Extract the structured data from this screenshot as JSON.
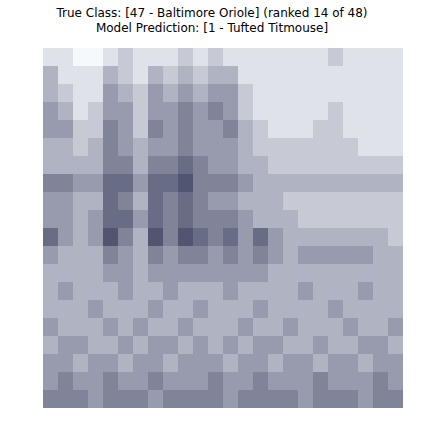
{
  "chart_data": {
    "type": "heatmap",
    "title": "True Class: [47 - Baltimore Oriole] (ranked 14 of 48)",
    "subtitle": "Model Prediction: [1 - Tufted Titmouse]",
    "tick_labels": false,
    "zlim": [
      0,
      9
    ],
    "cells": [
      [
        1,
        1,
        0,
        0,
        1,
        2,
        1,
        1,
        1,
        2,
        1,
        2,
        1,
        1,
        1,
        1,
        1,
        1,
        1,
        2,
        1,
        1,
        1,
        1
      ],
      [
        3,
        1,
        1,
        1,
        3,
        2,
        1,
        3,
        2,
        3,
        2,
        3,
        3,
        1,
        1,
        1,
        1,
        1,
        1,
        1,
        1,
        1,
        1,
        1
      ],
      [
        3,
        2,
        1,
        1,
        4,
        3,
        2,
        4,
        3,
        4,
        3,
        4,
        4,
        2,
        1,
        1,
        1,
        1,
        1,
        1,
        1,
        1,
        1,
        1
      ],
      [
        4,
        3,
        1,
        2,
        4,
        4,
        2,
        4,
        4,
        5,
        4,
        5,
        4,
        2,
        1,
        1,
        1,
        1,
        1,
        2,
        1,
        1,
        1,
        1
      ],
      [
        4,
        4,
        2,
        2,
        5,
        4,
        2,
        5,
        4,
        5,
        4,
        4,
        5,
        3,
        2,
        1,
        1,
        1,
        2,
        2,
        1,
        1,
        1,
        1
      ],
      [
        3,
        3,
        2,
        3,
        5,
        4,
        3,
        4,
        4,
        5,
        4,
        4,
        4,
        3,
        2,
        2,
        2,
        2,
        2,
        2,
        2,
        1,
        1,
        1
      ],
      [
        3,
        3,
        3,
        3,
        5,
        5,
        3,
        5,
        5,
        6,
        5,
        4,
        4,
        3,
        3,
        2,
        2,
        2,
        2,
        2,
        2,
        2,
        2,
        2
      ],
      [
        5,
        5,
        4,
        4,
        6,
        6,
        4,
        6,
        6,
        7,
        5,
        5,
        5,
        4,
        3,
        3,
        3,
        3,
        3,
        3,
        3,
        3,
        3,
        3
      ],
      [
        4,
        4,
        3,
        3,
        6,
        5,
        3,
        6,
        5,
        6,
        5,
        4,
        4,
        3,
        3,
        3,
        2,
        2,
        2,
        2,
        2,
        2,
        2,
        2
      ],
      [
        4,
        4,
        3,
        4,
        6,
        6,
        4,
        6,
        5,
        6,
        5,
        5,
        5,
        4,
        3,
        3,
        3,
        2,
        2,
        2,
        2,
        2,
        2,
        2
      ],
      [
        6,
        4,
        3,
        4,
        7,
        5,
        3,
        7,
        5,
        7,
        6,
        5,
        6,
        4,
        6,
        4,
        3,
        3,
        3,
        3,
        3,
        3,
        3,
        2
      ],
      [
        4,
        3,
        3,
        3,
        5,
        4,
        3,
        5,
        4,
        5,
        5,
        4,
        5,
        4,
        5,
        4,
        3,
        4,
        4,
        4,
        4,
        4,
        3,
        3
      ],
      [
        3,
        3,
        3,
        3,
        4,
        4,
        3,
        4,
        4,
        4,
        4,
        4,
        4,
        4,
        4,
        3,
        3,
        3,
        3,
        3,
        3,
        3,
        3,
        3
      ],
      [
        3,
        4,
        3,
        3,
        3,
        4,
        3,
        3,
        4,
        3,
        3,
        3,
        4,
        3,
        3,
        3,
        3,
        4,
        3,
        3,
        3,
        4,
        3,
        3
      ],
      [
        3,
        3,
        3,
        4,
        3,
        3,
        3,
        4,
        3,
        3,
        4,
        3,
        3,
        3,
        4,
        3,
        3,
        3,
        3,
        4,
        3,
        3,
        3,
        3
      ],
      [
        4,
        3,
        3,
        3,
        4,
        3,
        4,
        3,
        3,
        4,
        3,
        3,
        3,
        4,
        3,
        3,
        4,
        3,
        3,
        3,
        4,
        3,
        3,
        4
      ],
      [
        3,
        4,
        4,
        3,
        3,
        4,
        3,
        4,
        4,
        3,
        4,
        3,
        4,
        3,
        4,
        4,
        3,
        3,
        4,
        3,
        3,
        4,
        4,
        3
      ],
      [
        4,
        4,
        3,
        4,
        4,
        3,
        4,
        4,
        3,
        4,
        4,
        4,
        3,
        4,
        4,
        3,
        4,
        4,
        3,
        4,
        4,
        3,
        4,
        4
      ],
      [
        4,
        5,
        4,
        4,
        5,
        4,
        4,
        5,
        4,
        4,
        4,
        5,
        4,
        4,
        5,
        4,
        4,
        4,
        5,
        4,
        4,
        4,
        5,
        4
      ],
      [
        5,
        5,
        5,
        4,
        5,
        5,
        5,
        4,
        5,
        5,
        5,
        5,
        4,
        5,
        5,
        5,
        5,
        4,
        5,
        5,
        5,
        4,
        5,
        5
      ]
    ]
  }
}
